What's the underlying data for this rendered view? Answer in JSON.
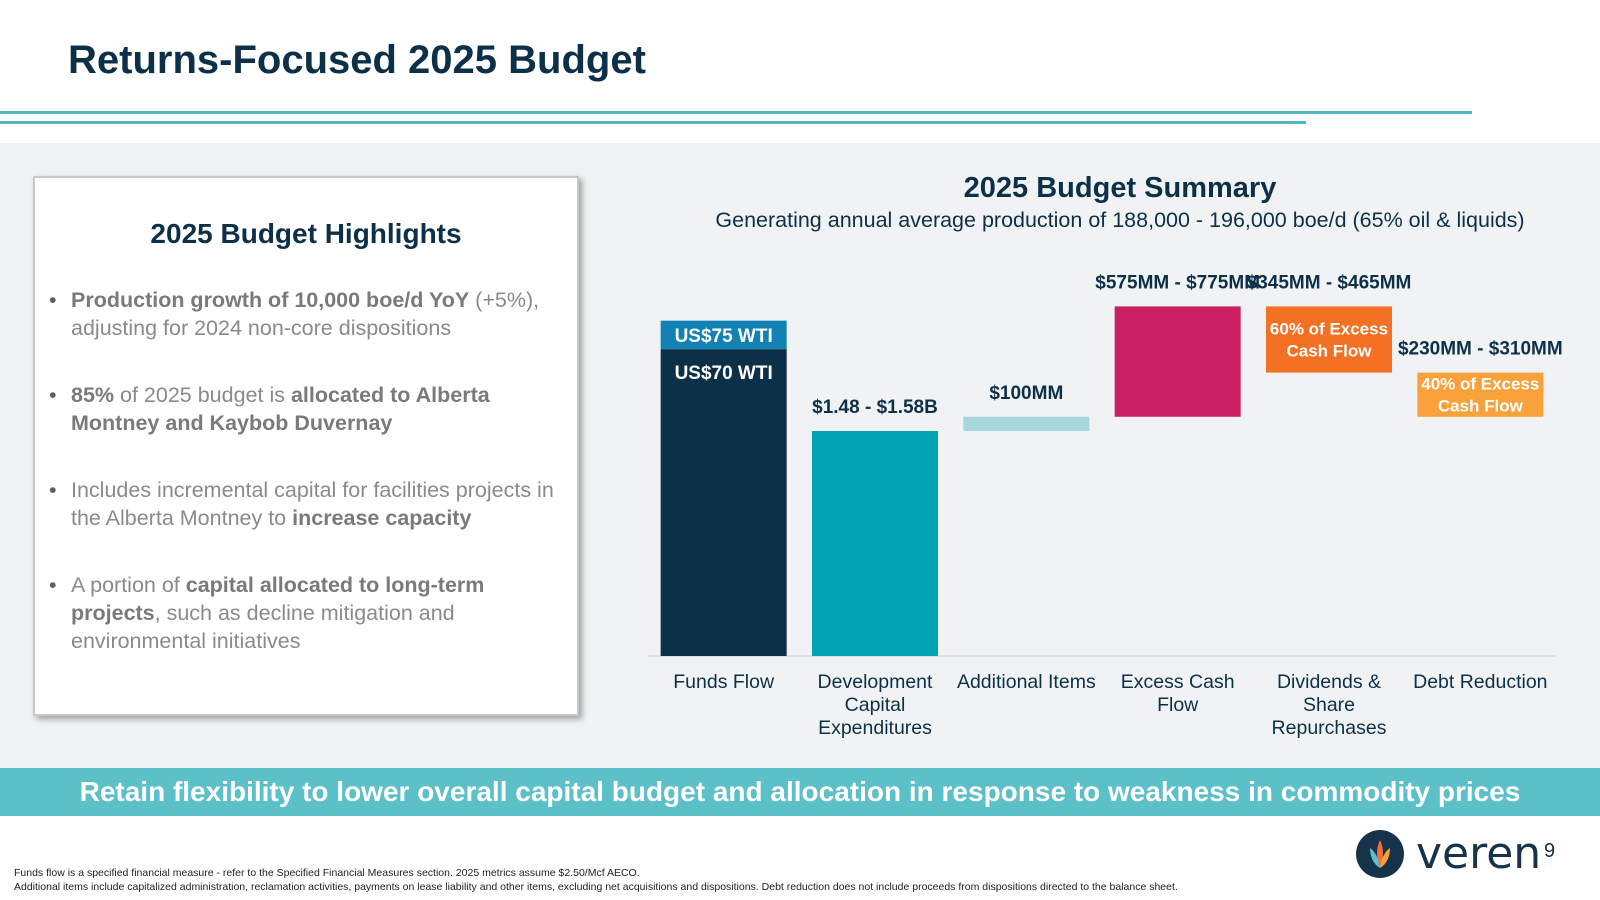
{
  "title": "Returns-Focused 2025 Budget",
  "highlights": {
    "heading": "2025 Budget Highlights",
    "bullets": [
      [
        {
          "t": "Production growth of 10,000 boe/d YoY",
          "b": true
        },
        {
          "t": " (+5%), adjusting for 2024 non-core dispositions",
          "b": false
        }
      ],
      [
        {
          "t": "85%",
          "b": true
        },
        {
          "t": " of 2025 budget is ",
          "b": false
        },
        {
          "t": "allocated to Alberta Montney and Kaybob Duvernay",
          "b": true
        }
      ],
      [
        {
          "t": "Includes incremental capital for facilities projects in the Alberta Montney to ",
          "b": false
        },
        {
          "t": "increase capacity",
          "b": true
        }
      ],
      [
        {
          "t": "A portion of ",
          "b": false
        },
        {
          "t": "capital allocated to long-term projects",
          "b": true
        },
        {
          "t": ", such as decline mitigation and environmental initiatives",
          "b": false
        }
      ]
    ]
  },
  "chart_data": {
    "type": "bar",
    "title": "2025 Budget Summary",
    "subtitle": "Generating annual average production of 188,000 - 196,000 boe/d (65% oil & liquids)",
    "categories": [
      [
        "Funds Flow"
      ],
      [
        "Development",
        "Capital",
        "Expenditures"
      ],
      [
        "Additional Items"
      ],
      [
        "Excess Cash",
        "Flow"
      ],
      [
        "Dividends &",
        "Share",
        "Repurchases"
      ],
      [
        "Debt Reduction"
      ]
    ],
    "units": "$MM",
    "bars": [
      {
        "segments": [
          {
            "from": 0,
            "to": 2155,
            "color": "#0d3049",
            "label": "US$70 WTI",
            "label_color": "#ffffff"
          },
          {
            "from": 2155,
            "to": 2355,
            "color": "#1281b3",
            "label": "US$75 WTI",
            "label_color": "#ffffff"
          }
        ]
      },
      {
        "segments": [
          {
            "from": 0,
            "to": 1580,
            "color": "#00a3b4"
          }
        ],
        "value_label": "$1.48 - $1.58B"
      },
      {
        "segments": [
          {
            "from": 1580,
            "to": 1680,
            "color": "#a8d6df"
          }
        ],
        "value_label": "$100MM"
      },
      {
        "segments": [
          {
            "from": 1680,
            "to": 2455,
            "color": "#ca1f61"
          }
        ],
        "value_label": "$575MM - $775MM"
      },
      {
        "segments": [
          {
            "from": 1990,
            "to": 2455,
            "color": "#f47123",
            "label": "60% of Excess Cash Flow",
            "label_color": "#ffffff"
          }
        ],
        "value_label": "$345MM - $465MM"
      },
      {
        "segments": [
          {
            "from": 1680,
            "to": 1990,
            "color": "#f9a23b",
            "label": "40% of Excess Cash Flow",
            "label_color": "#ffffff"
          }
        ],
        "value_label": "$230MM - $310MM"
      }
    ],
    "ylim": [
      0,
      2500
    ],
    "xlabel": "",
    "ylabel": "",
    "grid": false,
    "colors": {
      "text": "#0d3049",
      "axis": "#d0d0d0"
    }
  },
  "banner": "Retain flexibility to lower overall capital budget and allocation in response to weakness in commodity prices",
  "footnotes": [
    "Funds flow is a specified financial measure - refer to the Specified Financial Measures section. 2025 metrics assume $2.50/Mcf AECO.",
    "Additional items include capitalized administration, reclamation activities, payments on lease liability and other items, excluding net acquisitions and dispositions. Debt reduction does not include proceeds from dispositions directed to the balance sheet."
  ],
  "logo": {
    "text": "veren",
    "icon": "veren-flame-icon"
  },
  "page_number": "9"
}
